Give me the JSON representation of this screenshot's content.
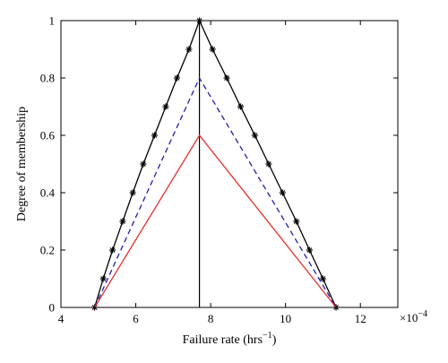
{
  "chart_data": {
    "type": "line",
    "title": "",
    "xlabel": "Failure rate (hrs",
    "xlabel_sup": "−1",
    "xlabel_close": ")",
    "ylabel": "Degree of membership",
    "x_multiplier": "×10",
    "x_multiplier_exp": "−4",
    "xlim": [
      4,
      13
    ],
    "ylim": [
      0,
      1
    ],
    "xticks": [
      4,
      6,
      8,
      10,
      12
    ],
    "xtick_labels": [
      "4",
      "6",
      "8",
      "10",
      "12"
    ],
    "yticks": [
      0,
      0.2,
      0.4,
      0.6,
      0.8,
      1
    ],
    "ytick_labels": [
      "0",
      "0.2",
      "0.4",
      "0.6",
      "0.8",
      "1"
    ],
    "grid": false,
    "vertical_line_x": 7.7,
    "series": [
      {
        "color": "#000000",
        "style": "solid",
        "marker": "asterisk",
        "points": [
          [
            4.9,
            0
          ],
          [
            5.13,
            0.1
          ],
          [
            5.38,
            0.2
          ],
          [
            5.65,
            0.3
          ],
          [
            5.92,
            0.4
          ],
          [
            6.2,
            0.5
          ],
          [
            6.5,
            0.6
          ],
          [
            6.8,
            0.7
          ],
          [
            7.1,
            0.8
          ],
          [
            7.42,
            0.9
          ],
          [
            7.7,
            1.0
          ],
          [
            8.05,
            0.9
          ],
          [
            8.43,
            0.8
          ],
          [
            8.8,
            0.7
          ],
          [
            9.18,
            0.6
          ],
          [
            9.55,
            0.5
          ],
          [
            9.92,
            0.4
          ],
          [
            10.29,
            0.3
          ],
          [
            10.64,
            0.2
          ],
          [
            11.0,
            0.1
          ],
          [
            11.35,
            0
          ]
        ]
      },
      {
        "color": "#1f1fa8",
        "style": "dashed",
        "marker": "none",
        "points": [
          [
            4.9,
            0
          ],
          [
            7.7,
            0.8
          ],
          [
            11.35,
            0
          ]
        ]
      },
      {
        "color": "#e03030",
        "style": "solid",
        "marker": "none",
        "points": [
          [
            4.9,
            0
          ],
          [
            7.7,
            0.6
          ],
          [
            11.35,
            0
          ]
        ]
      }
    ]
  }
}
